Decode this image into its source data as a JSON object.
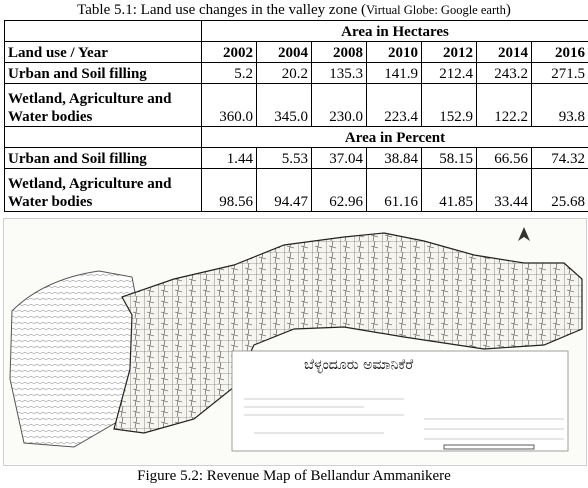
{
  "table_caption": {
    "text": "Table 5.1: Land use changes in the valley zone (",
    "source": "Virtual Globe: Google earth",
    "close": ")"
  },
  "table": {
    "band_hectares": "Area in Hectares",
    "band_percent": "Area in Percent",
    "header_label": "Land use / Year",
    "years": [
      "2002",
      "2004",
      "2008",
      "2010",
      "2012",
      "2014",
      "2016"
    ],
    "hectares": [
      {
        "label_line1": "Urban and Soil filling",
        "label_line2": "",
        "values": [
          "5.2",
          "20.2",
          "135.3",
          "141.9",
          "212.4",
          "243.2",
          "271.5"
        ]
      },
      {
        "label_line1": "Wetland, Agriculture and",
        "label_line2": "Water bodies",
        "values": [
          "360.0",
          "345.0",
          "230.0",
          "223.4",
          "152.9",
          "122.2",
          "93.8"
        ]
      }
    ],
    "percent": [
      {
        "label_line1": "Urban and Soil filling",
        "label_line2": "",
        "values": [
          "1.44",
          "5.53",
          "37.04",
          "38.84",
          "58.15",
          "66.56",
          "74.32"
        ]
      },
      {
        "label_line1": "Wetland, Agriculture and",
        "label_line2": "Water bodies",
        "values": [
          "98.56",
          "94.47",
          "62.96",
          "61.16",
          "41.85",
          "33.44",
          "25.68"
        ]
      }
    ]
  },
  "map": {
    "title_kannada": "ಬೆಳ್ಳಂದೂರು ಅಮಾನಿಕೆರೆ"
  },
  "figure_caption": "Figure 5.2: Revenue Map of Bellandur Ammanikere"
}
